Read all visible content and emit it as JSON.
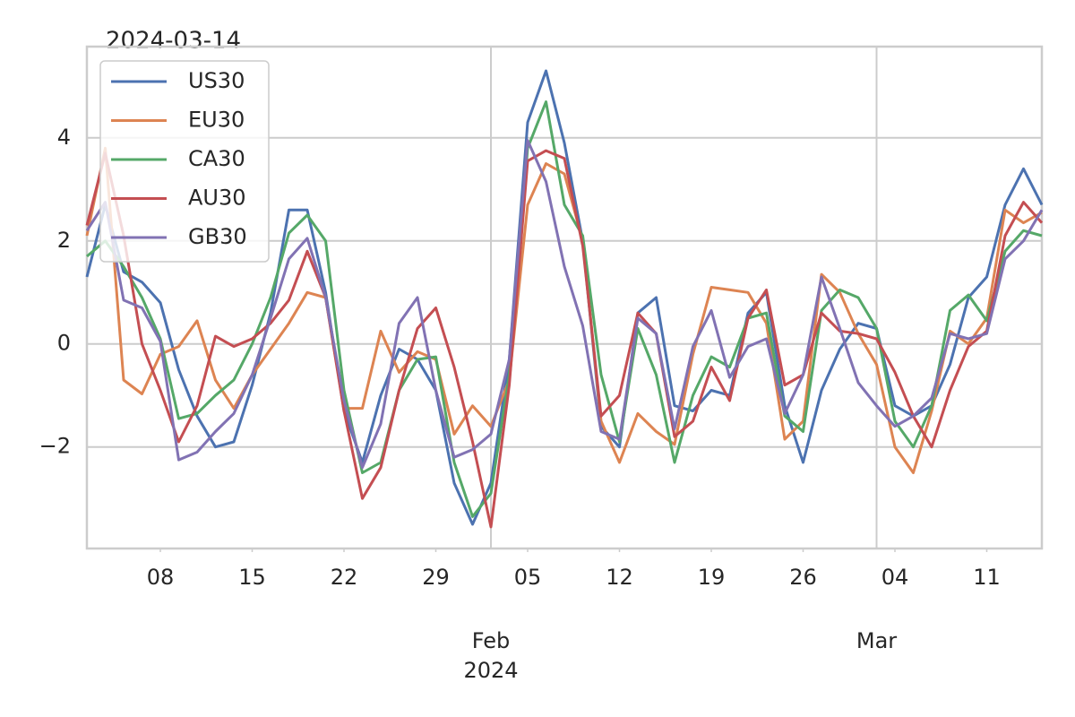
{
  "chart_data": {
    "type": "line",
    "title": "2024-03-14",
    "x": [
      "2024-01-02",
      "2024-01-03",
      "2024-01-04",
      "2024-01-05",
      "2024-01-08",
      "2024-01-09",
      "2024-01-10",
      "2024-01-11",
      "2024-01-12",
      "2024-01-15",
      "2024-01-16",
      "2024-01-17",
      "2024-01-18",
      "2024-01-19",
      "2024-01-22",
      "2024-01-23",
      "2024-01-24",
      "2024-01-25",
      "2024-01-26",
      "2024-01-29",
      "2024-01-30",
      "2024-01-31",
      "2024-02-01",
      "2024-02-02",
      "2024-02-05",
      "2024-02-06",
      "2024-02-07",
      "2024-02-08",
      "2024-02-09",
      "2024-02-12",
      "2024-02-13",
      "2024-02-14",
      "2024-02-15",
      "2024-02-16",
      "2024-02-19",
      "2024-02-20",
      "2024-02-21",
      "2024-02-22",
      "2024-02-23",
      "2024-02-26",
      "2024-02-27",
      "2024-02-28",
      "2024-02-29",
      "2024-03-01",
      "2024-03-04",
      "2024-03-05",
      "2024-03-06",
      "2024-03-07",
      "2024-03-08",
      "2024-03-11",
      "2024-03-12",
      "2024-03-13",
      "2024-03-14"
    ],
    "series": [
      {
        "name": "US30",
        "color": "#4c72b0",
        "values": [
          1.3,
          2.7,
          1.4,
          1.2,
          0.8,
          -0.5,
          -1.4,
          -2.0,
          -1.9,
          -0.8,
          0.6,
          2.6,
          2.6,
          1.0,
          -1.3,
          -2.3,
          -1.0,
          -0.1,
          -0.3,
          -0.9,
          -2.7,
          -3.5,
          -2.7,
          -0.3,
          4.3,
          5.3,
          3.9,
          2.0,
          -1.6,
          -2.0,
          0.6,
          0.9,
          -1.2,
          -1.3,
          -0.9,
          -1.0,
          0.6,
          1.0,
          -1.2,
          -2.3,
          -0.9,
          -0.1,
          0.4,
          0.3,
          -1.2,
          -1.4,
          -1.2,
          -0.4,
          0.9,
          1.3,
          2.7,
          3.4,
          2.7
        ]
      },
      {
        "name": "EU30",
        "color": "#dd8452",
        "values": [
          2.1,
          3.8,
          -0.7,
          -0.97,
          -0.2,
          -0.05,
          0.45,
          -0.7,
          -1.25,
          -0.6,
          -0.1,
          0.4,
          1.0,
          0.9,
          -1.25,
          -1.25,
          0.25,
          -0.55,
          -0.15,
          -0.3,
          -1.75,
          -1.2,
          -1.6,
          -0.7,
          2.7,
          3.5,
          3.3,
          2.0,
          -1.5,
          -2.3,
          -1.35,
          -1.7,
          -1.95,
          -0.2,
          1.1,
          1.05,
          1.0,
          0.4,
          -1.85,
          -1.5,
          1.35,
          1.0,
          0.2,
          -0.4,
          -2.0,
          -2.5,
          -1.3,
          0.25,
          0.0,
          0.5,
          2.6,
          2.35,
          2.55
        ]
      },
      {
        "name": "CA30",
        "color": "#55a868",
        "values": [
          1.7,
          2.0,
          1.5,
          0.9,
          0.1,
          -1.45,
          -1.35,
          -1.0,
          -0.7,
          0.0,
          0.9,
          2.15,
          2.5,
          2.0,
          -0.9,
          -2.5,
          -2.3,
          -0.9,
          -0.3,
          -0.25,
          -2.3,
          -3.35,
          -2.9,
          -0.6,
          3.8,
          4.7,
          2.7,
          2.1,
          -0.6,
          -1.9,
          0.3,
          -0.6,
          -2.3,
          -1.0,
          -0.25,
          -0.45,
          0.5,
          0.6,
          -1.4,
          -1.7,
          0.65,
          1.05,
          0.9,
          0.3,
          -1.5,
          -2.0,
          -1.2,
          0.65,
          0.95,
          0.45,
          1.8,
          2.2,
          2.1
        ]
      },
      {
        "name": "AU30",
        "color": "#c44e52",
        "values": [
          2.3,
          3.7,
          2.1,
          0.0,
          -0.9,
          -1.9,
          -1.2,
          0.15,
          -0.05,
          0.1,
          0.4,
          0.85,
          1.8,
          0.9,
          -1.3,
          -3.0,
          -2.4,
          -0.9,
          0.3,
          0.7,
          -0.45,
          -1.9,
          -3.55,
          -0.8,
          3.55,
          3.75,
          3.6,
          1.9,
          -1.4,
          -1.0,
          0.6,
          0.2,
          -1.8,
          -1.5,
          -0.45,
          -1.1,
          0.5,
          1.05,
          -0.8,
          -0.6,
          0.6,
          0.25,
          0.2,
          0.1,
          -0.55,
          -1.4,
          -2.0,
          -0.9,
          -0.05,
          0.25,
          2.1,
          2.75,
          2.35
        ]
      },
      {
        "name": "GB30",
        "color": "#8172b3",
        "values": [
          2.2,
          2.75,
          0.85,
          0.7,
          0.05,
          -2.25,
          -2.1,
          -1.7,
          -1.35,
          -0.6,
          0.5,
          1.65,
          2.05,
          0.9,
          -1.1,
          -2.4,
          -1.55,
          0.4,
          0.9,
          -0.9,
          -2.2,
          -2.05,
          -1.75,
          -0.3,
          3.95,
          3.15,
          1.5,
          0.35,
          -1.7,
          -1.85,
          0.5,
          0.2,
          -1.65,
          -0.05,
          0.65,
          -0.65,
          -0.05,
          0.1,
          -1.35,
          -0.6,
          1.3,
          0.3,
          -0.75,
          -1.2,
          -1.6,
          -1.4,
          -1.05,
          0.2,
          0.1,
          0.2,
          1.65,
          2.0,
          2.6
        ]
      }
    ],
    "ylim": [
      -3.97,
      5.77
    ],
    "yticks": [
      {
        "value": -2,
        "label": "−2"
      },
      0,
      2,
      4
    ],
    "xticks": [
      {
        "value": "2024-01-08",
        "label": "08"
      },
      {
        "value": "2024-01-15",
        "label": "15"
      },
      {
        "value": "2024-01-22",
        "label": "22"
      },
      {
        "value": "2024-01-29",
        "label": "29"
      },
      {
        "value": "2024-02-05",
        "label": "05"
      },
      {
        "value": "2024-02-12",
        "label": "12"
      },
      {
        "value": "2024-02-19",
        "label": "19"
      },
      {
        "value": "2024-02-26",
        "label": "26"
      },
      {
        "value": "2024-03-04",
        "label": "04"
      },
      {
        "value": "2024-03-11",
        "label": "11"
      }
    ],
    "xticks_major": [
      {
        "value": "2024-02-01",
        "label": "Feb\n2024"
      },
      {
        "value": "2024-03-01",
        "label": "Mar"
      }
    ],
    "grid": true,
    "legend": "upper left"
  }
}
